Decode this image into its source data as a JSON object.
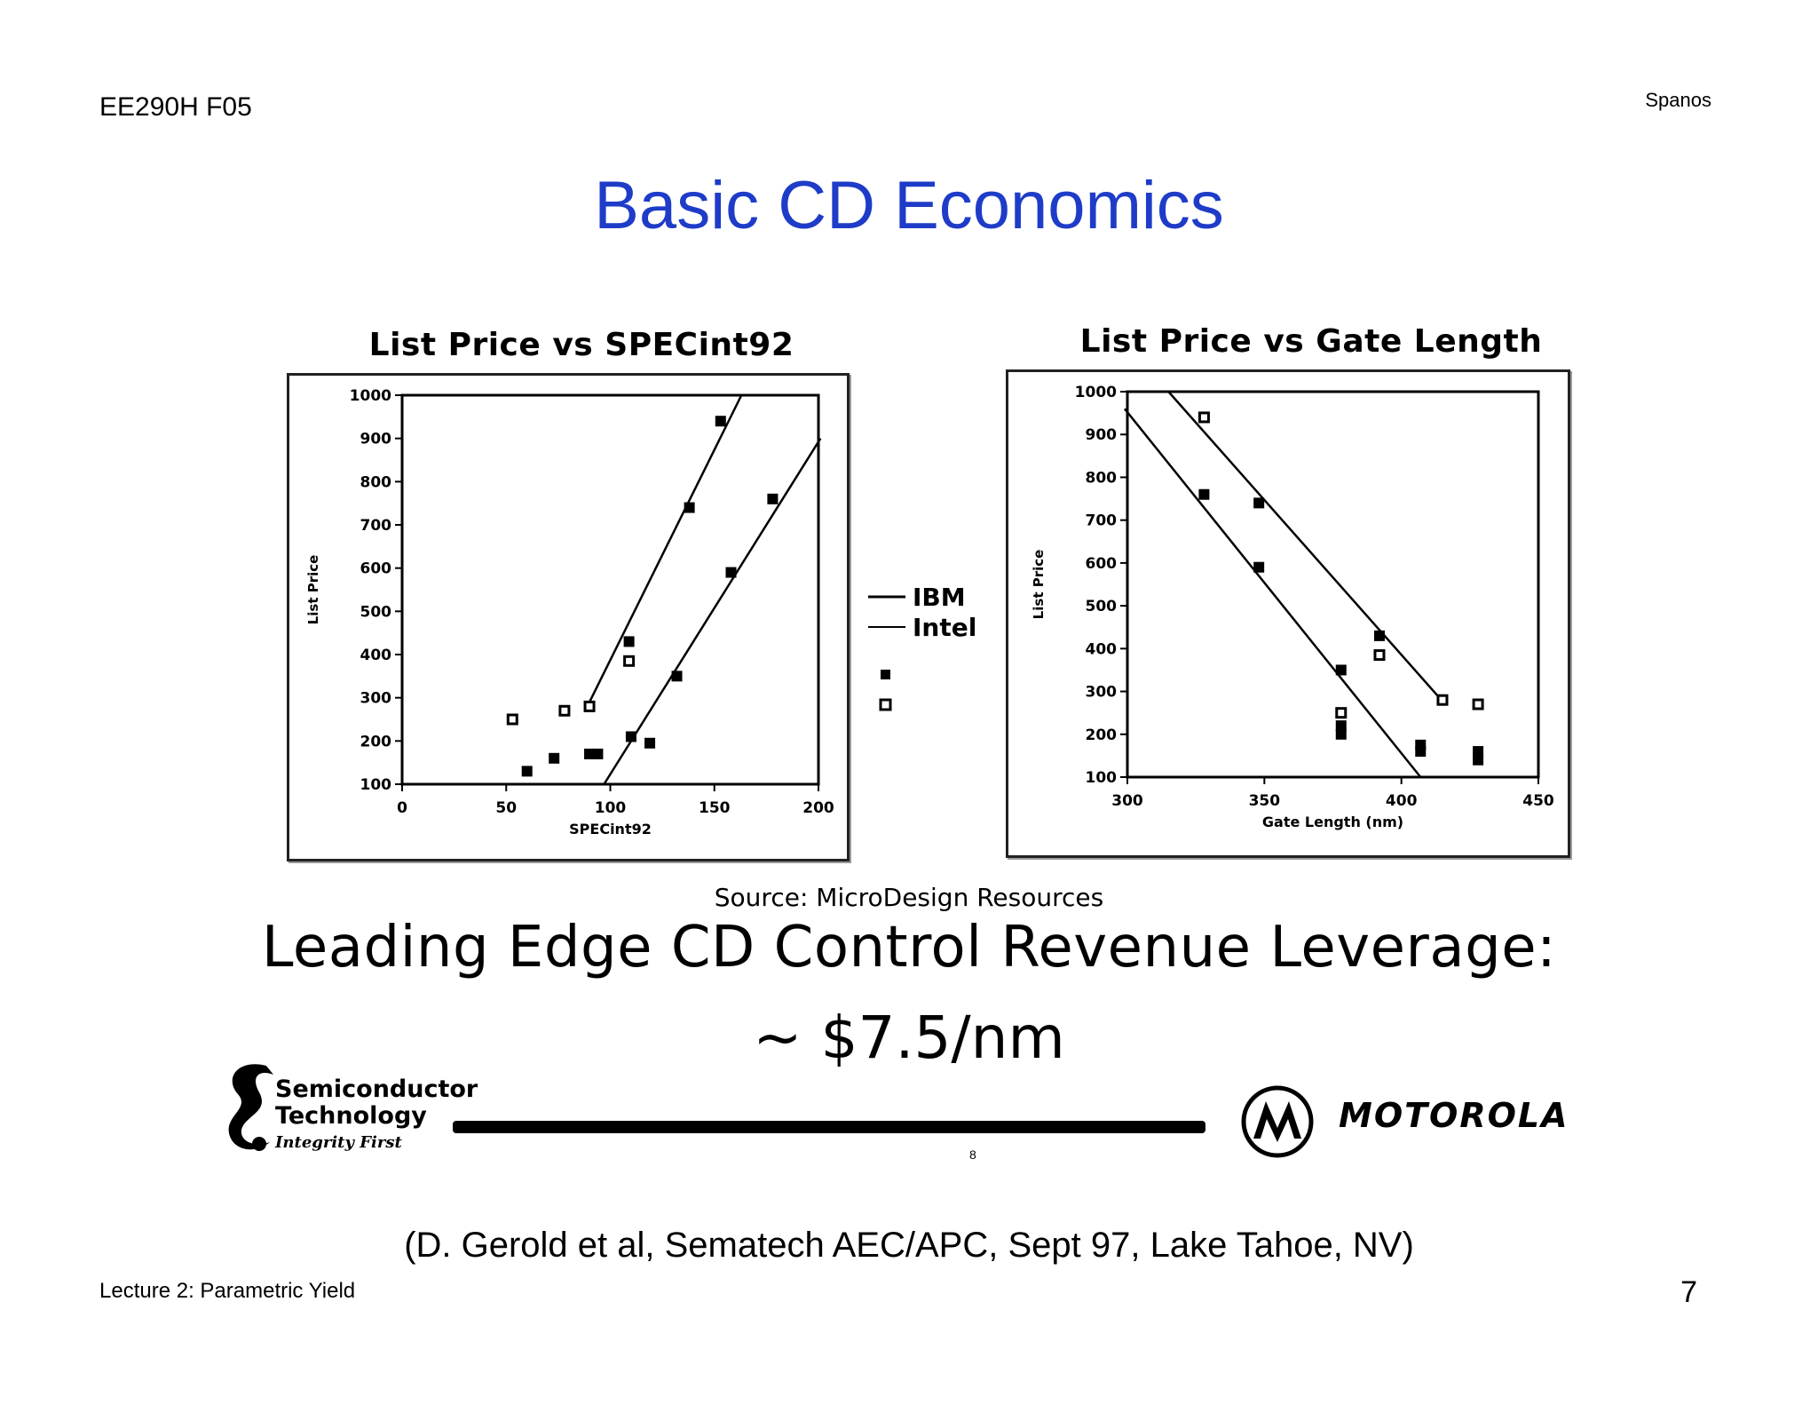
{
  "header": {
    "course": "EE290H F05",
    "author": "Spanos"
  },
  "slide": {
    "title": "Basic CD Economics",
    "source": "Source: MicroDesign Resources",
    "leverage": "Leading Edge CD Control Revenue Leverage:",
    "per_nm": "~ $7.5/nm",
    "page_mark": "8",
    "citation": "(D. Gerold et al, Sematech AEC/APC, Sept 97, Lake Tahoe, NV)"
  },
  "logos": {
    "semi_line1": "Semiconductor",
    "semi_line2": "Technology",
    "semi_tag": "Integrity First",
    "motorola": "MOTOROLA"
  },
  "legend": {
    "ibm": "IBM",
    "intel": "Intel"
  },
  "footer": {
    "lecture": "Lecture 2: Parametric Yield",
    "page": "7"
  },
  "chart_data": [
    {
      "type": "scatter",
      "title": "List Price vs SPECint92",
      "xlabel": "SPECint92",
      "ylabel": "List Price",
      "xlim": [
        0,
        200
      ],
      "ylim": [
        100,
        1000
      ],
      "xticks": [
        0,
        50,
        100,
        150,
        200
      ],
      "yticks": [
        100,
        200,
        300,
        400,
        500,
        600,
        700,
        800,
        900,
        1000
      ],
      "series": [
        {
          "name": "IBM",
          "marker": "filled",
          "points": [
            [
              60,
              130
            ],
            [
              73,
              160
            ],
            [
              90,
              170
            ],
            [
              94,
              170
            ],
            [
              110,
              210
            ],
            [
              119,
              195
            ],
            [
              132,
              350
            ],
            [
              138,
              740
            ],
            [
              158,
              590
            ],
            [
              178,
              760
            ],
            [
              153,
              940
            ],
            [
              109,
              430
            ]
          ]
        },
        {
          "name": "Intel",
          "marker": "open",
          "points": [
            [
              53,
              250
            ],
            [
              78,
              270
            ],
            [
              90,
              280
            ],
            [
              109,
              385
            ]
          ]
        }
      ],
      "fit_lines": [
        {
          "name": "IBM",
          "x": [
            90,
            163
          ],
          "y": [
            290,
            1000
          ]
        },
        {
          "name": "Intel",
          "x": [
            97,
            201
          ],
          "y": [
            100,
            900
          ]
        }
      ]
    },
    {
      "type": "scatter",
      "title": "List Price vs Gate Length",
      "xlabel": "Gate Length (nm)",
      "ylabel": "List Price",
      "xlim": [
        300,
        450
      ],
      "ylim": [
        100,
        1000
      ],
      "xticks": [
        300,
        350,
        400,
        450
      ],
      "yticks": [
        100,
        200,
        300,
        400,
        500,
        600,
        700,
        800,
        900,
        1000
      ],
      "series": [
        {
          "name": "IBM",
          "marker": "filled",
          "points": [
            [
              328,
              760
            ],
            [
              348,
              590
            ],
            [
              348,
              740
            ],
            [
              378,
              350
            ],
            [
              378,
              220
            ],
            [
              378,
              200
            ],
            [
              392,
              430
            ],
            [
              407,
              175
            ],
            [
              407,
              160
            ],
            [
              428,
              160
            ],
            [
              428,
              140
            ]
          ]
        },
        {
          "name": "Intel",
          "marker": "open",
          "points": [
            [
              328,
              940
            ],
            [
              378,
              250
            ],
            [
              392,
              385
            ],
            [
              415,
              280
            ],
            [
              428,
              270
            ]
          ]
        }
      ],
      "fit_lines": [
        {
          "name": "IBM",
          "x": [
            299,
            407
          ],
          "y": [
            960,
            100
          ]
        },
        {
          "name": "Intel",
          "x": [
            315,
            416
          ],
          "y": [
            1000,
            270
          ]
        }
      ],
      "extra_legend_markers": [
        "filled",
        "open"
      ]
    }
  ]
}
